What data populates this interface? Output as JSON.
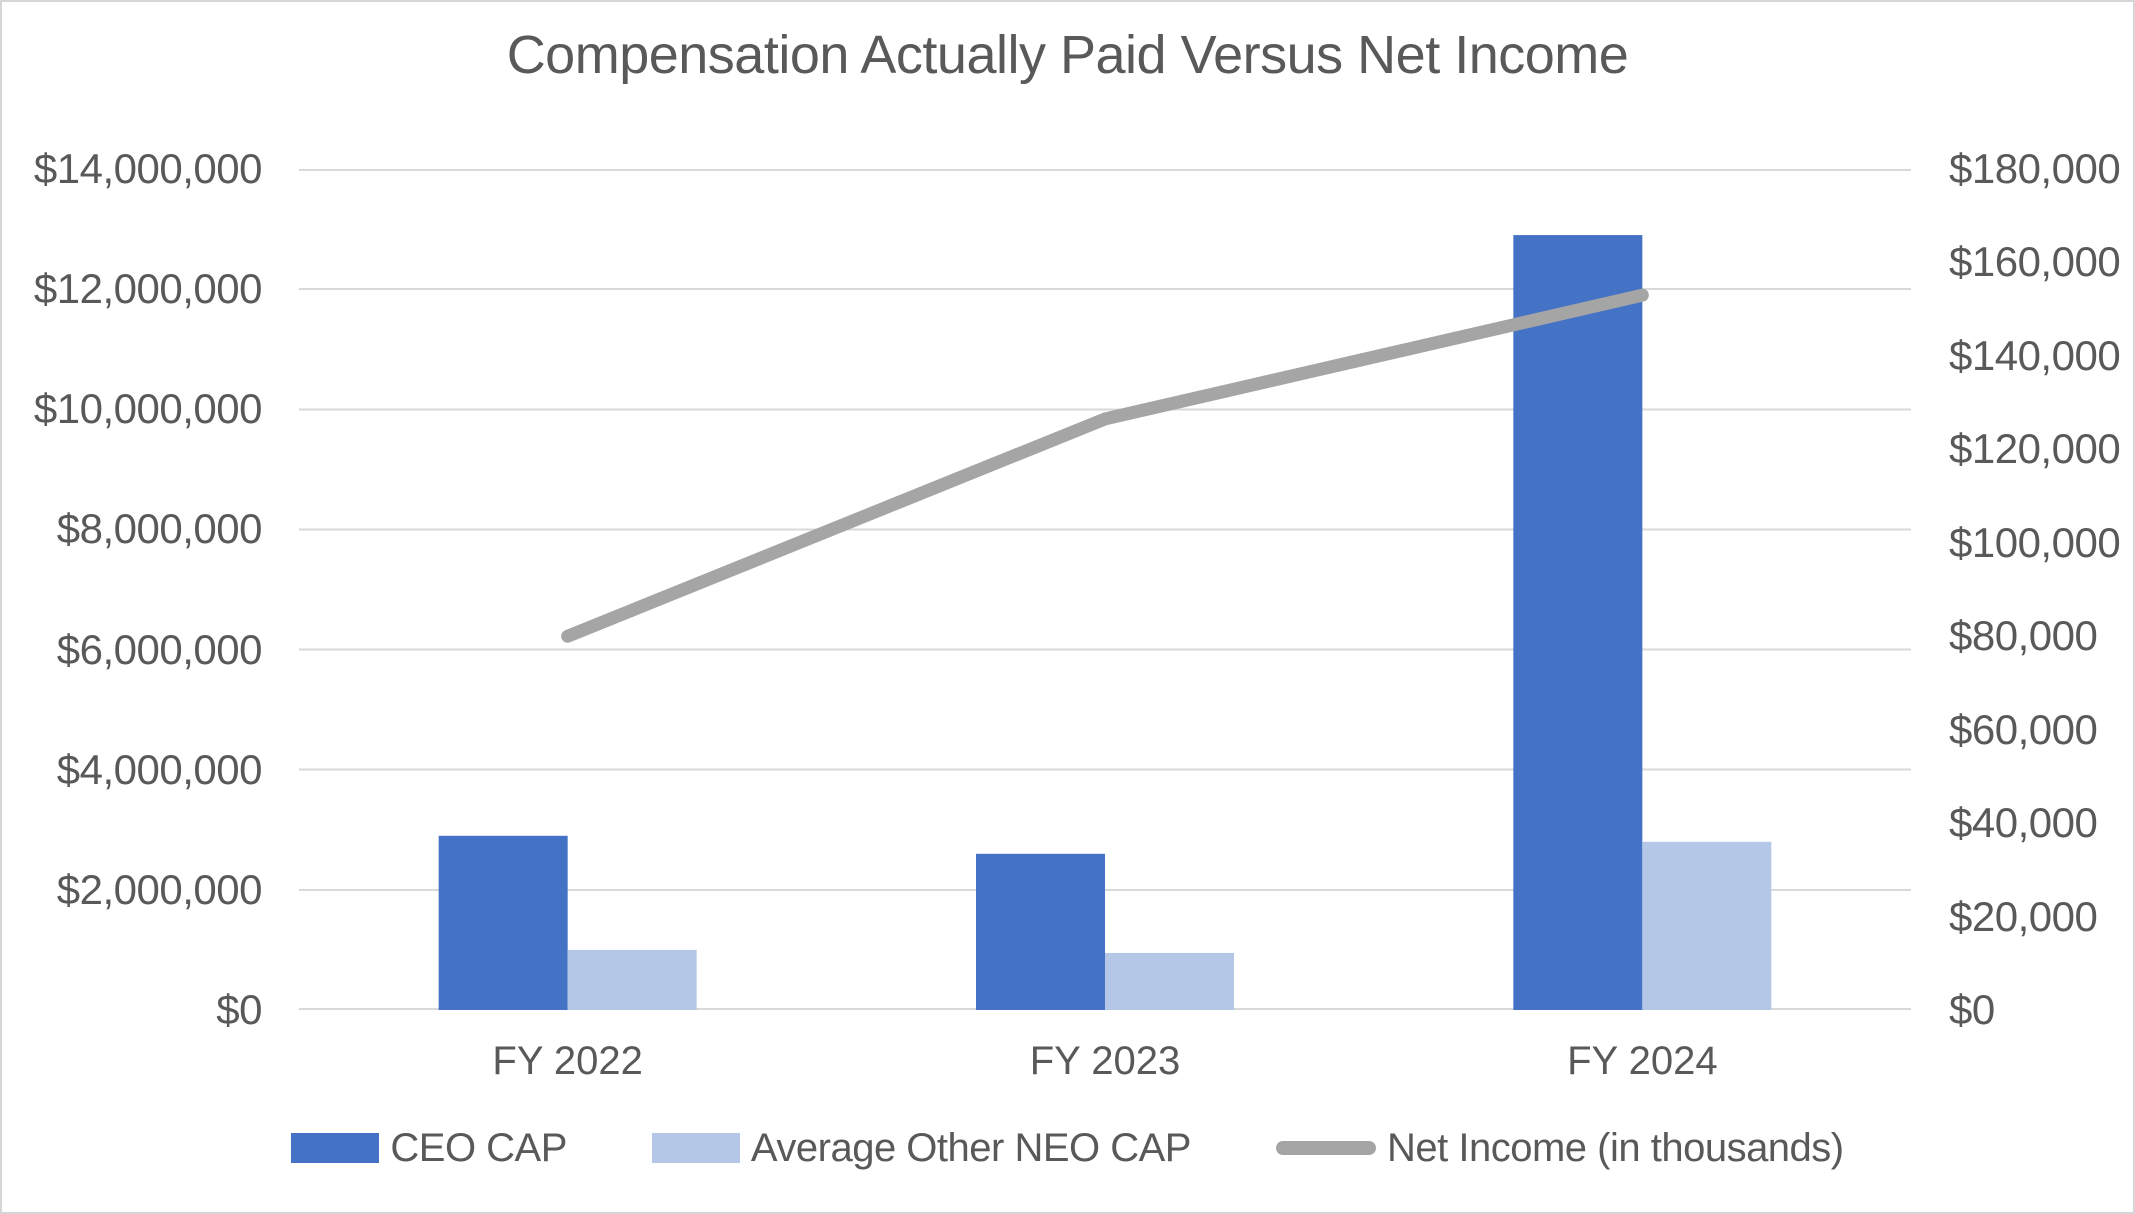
{
  "chart_data": {
    "type": "combo-bar-line",
    "title": "Compensation Actually Paid Versus Net Income",
    "categories": [
      "FY 2022",
      "FY 2023",
      "FY 2024"
    ],
    "series": [
      {
        "name": "CEO CAP",
        "type": "bar",
        "axis": "left",
        "color": "#4472C4",
        "values": [
          2900000,
          2600000,
          12900000
        ]
      },
      {
        "name": "Average Other NEO CAP",
        "type": "bar",
        "axis": "left",
        "color": "#B4C7E7",
        "values": [
          1000000,
          950000,
          2800000
        ]
      },
      {
        "name": "Net Income (in thousands)",
        "type": "line",
        "axis": "right",
        "color": "#A5A5A5",
        "values": [
          80000,
          126500,
          153000
        ]
      }
    ],
    "left_axis": {
      "min": 0,
      "max": 14000000,
      "step": 2000000,
      "tick_labels": [
        "$0",
        "$2,000,000",
        "$4,000,000",
        "$6,000,000",
        "$8,000,000",
        "$10,000,000",
        "$12,000,000",
        "$14,000,000"
      ]
    },
    "right_axis": {
      "min": 0,
      "max": 180000,
      "step": 20000,
      "tick_labels": [
        "$0",
        "$20,000",
        "$40,000",
        "$60,000",
        "$80,000",
        "$100,000",
        "$120,000",
        "$140,000",
        "$160,000",
        "$180,000"
      ]
    },
    "grid": "horizontal",
    "legend_position": "bottom",
    "colors": {
      "text": "#595959",
      "gridline": "#D9D9D9",
      "background": "#FFFFFF",
      "border": "#D6D6D6"
    }
  }
}
